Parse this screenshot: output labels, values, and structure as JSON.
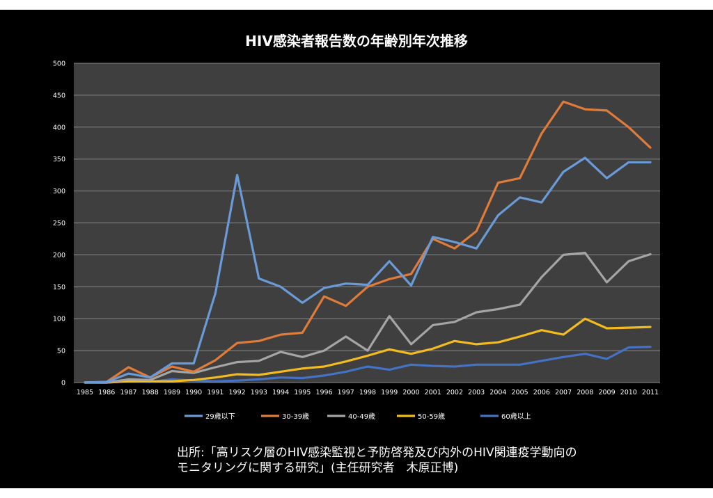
{
  "chart_data": {
    "type": "line",
    "title": "HIV感染者報告数の年齢別年次推移",
    "xlabel": "",
    "ylabel": "",
    "ylim": [
      0,
      500
    ],
    "yticks": [
      0,
      50,
      100,
      150,
      200,
      250,
      300,
      350,
      400,
      450,
      500
    ],
    "grid": true,
    "legend_position": "bottom",
    "categories": [
      "1985",
      "1986",
      "1987",
      "1988",
      "1989",
      "1990",
      "1991",
      "1992",
      "1993",
      "1994",
      "1995",
      "1996",
      "1997",
      "1998",
      "1999",
      "2000",
      "2001",
      "2002",
      "2003",
      "2004",
      "2005",
      "2006",
      "2007",
      "2008",
      "2009",
      "2010",
      "2011"
    ],
    "series": [
      {
        "name": "29歳以下",
        "color": "#6a9bd8",
        "values": [
          0,
          1,
          14,
          8,
          30,
          30,
          140,
          325,
          163,
          150,
          125,
          148,
          155,
          153,
          190,
          152,
          228,
          220,
          210,
          262,
          290,
          282,
          330,
          352,
          320,
          345,
          345
        ]
      },
      {
        "name": "30-39歳",
        "color": "#e07b39",
        "values": [
          0,
          1,
          24,
          8,
          25,
          17,
          35,
          62,
          65,
          75,
          78,
          135,
          120,
          150,
          162,
          170,
          225,
          210,
          237,
          313,
          320,
          390,
          440,
          428,
          426,
          400,
          368
        ]
      },
      {
        "name": "40-49歳",
        "color": "#a5a5a5",
        "values": [
          0,
          0,
          5,
          4,
          18,
          15,
          24,
          32,
          34,
          48,
          40,
          50,
          72,
          50,
          104,
          60,
          90,
          95,
          110,
          115,
          122,
          165,
          200,
          203,
          157,
          190,
          201
        ]
      },
      {
        "name": "50-59歳",
        "color": "#f3bb1c",
        "values": [
          0,
          0,
          2,
          2,
          2,
          4,
          8,
          13,
          12,
          17,
          22,
          25,
          33,
          42,
          52,
          45,
          53,
          65,
          60,
          63,
          72,
          82,
          75,
          100,
          85,
          86,
          87
        ]
      },
      {
        "name": "60歳以上",
        "color": "#4472c4",
        "values": [
          0,
          0,
          2,
          1,
          5,
          3,
          2,
          3,
          5,
          8,
          7,
          11,
          17,
          25,
          20,
          28,
          26,
          25,
          28,
          28,
          28,
          34,
          40,
          45,
          37,
          55,
          56
        ]
      }
    ]
  },
  "source_note": {
    "line1": "出所:「高リスク層のHIV感染監視と予防啓発及び内外のHIV関連疫学動向の",
    "line2": "モニタリングに関する研究」(主任研究者　木原正博)"
  }
}
